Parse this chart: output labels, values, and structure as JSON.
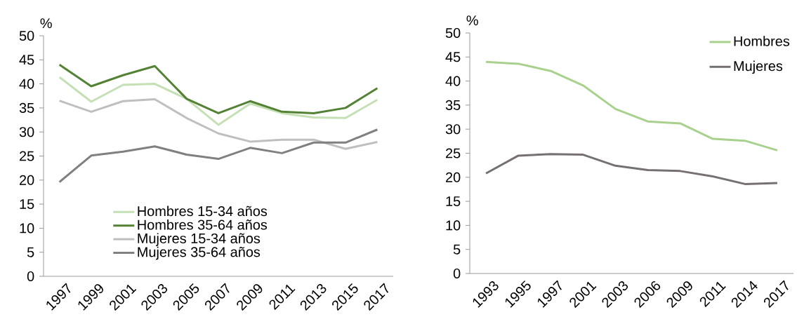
{
  "chart_data": [
    {
      "type": "line",
      "ylabel": "%",
      "categories": [
        "1997",
        "1999",
        "2001",
        "2003",
        "2005",
        "2007",
        "2009",
        "2011",
        "2013",
        "2015",
        "2017"
      ],
      "ylim": [
        0,
        50
      ],
      "yticks": [
        0,
        5,
        10,
        15,
        20,
        25,
        30,
        35,
        40,
        45,
        50
      ],
      "legend": "bottom",
      "marker": "none",
      "line_style": "solid",
      "series": [
        {
          "name": "Hombres 15-34 años",
          "color": "#c5e0b4",
          "values": [
            41.4,
            36.3,
            39.8,
            40.0,
            36.9,
            31.5,
            35.9,
            33.9,
            33.0,
            32.9,
            36.7
          ]
        },
        {
          "name": "Hombres 35-64 años",
          "color": "#548235",
          "values": [
            44.0,
            39.5,
            41.8,
            43.7,
            36.9,
            33.9,
            36.4,
            34.2,
            33.9,
            35.0,
            39.1
          ]
        },
        {
          "name": "Mujeres 15-34 años",
          "color": "#bfbfbf",
          "values": [
            36.5,
            34.2,
            36.4,
            36.8,
            32.9,
            29.7,
            28.0,
            28.4,
            28.4,
            26.5,
            27.9
          ]
        },
        {
          "name": "Mujeres 35-64 años",
          "color": "#808080",
          "values": [
            19.6,
            25.1,
            25.9,
            27.0,
            25.3,
            24.4,
            26.7,
            25.6,
            27.8,
            27.8,
            30.5
          ]
        }
      ]
    },
    {
      "type": "line",
      "ylabel": "%",
      "categories": [
        "1993",
        "1995",
        "1997",
        "2001",
        "2003",
        "2006",
        "2009",
        "2011",
        "2014",
        "2017"
      ],
      "ylim": [
        0,
        50
      ],
      "yticks": [
        0,
        5,
        10,
        15,
        20,
        25,
        30,
        35,
        40,
        45,
        50
      ],
      "legend": "top right",
      "marker": "none",
      "line_style": "solid",
      "series": [
        {
          "name": "Hombres",
          "color": "#a9d18e",
          "values": [
            44.0,
            43.6,
            42.1,
            39.1,
            34.2,
            31.6,
            31.2,
            28.0,
            27.6,
            25.6
          ]
        },
        {
          "name": "Mujeres",
          "color": "#767171",
          "values": [
            20.8,
            24.5,
            24.8,
            24.7,
            22.4,
            21.5,
            21.3,
            20.2,
            18.6,
            18.8
          ]
        }
      ]
    }
  ]
}
